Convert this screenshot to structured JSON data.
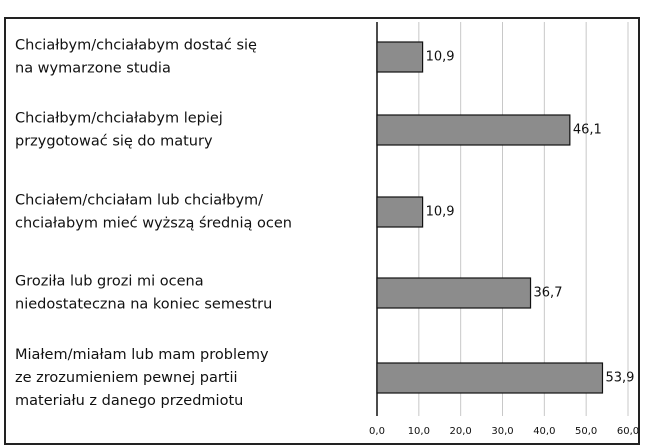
{
  "chart_data": {
    "type": "bar",
    "orientation": "horizontal",
    "categories": [
      [
        "Chciałbym/chciałabym dostać się",
        "na wymarzone studia"
      ],
      [
        "Chciałbym/chciałabym lepiej",
        "przygotować się do matury"
      ],
      [
        "Chciałem/chciałam lub chciałbym/",
        "chciałabym mieć wyższą średnią ocen"
      ],
      [
        "Groziła lub grozi mi ocena",
        "niedostateczna na koniec semestru"
      ],
      [
        "Miałem/miałam lub mam problemy",
        "ze zrozumieniem pewnej partii",
        "materiału z danego przedmiotu"
      ]
    ],
    "values": [
      10.9,
      46.1,
      10.9,
      36.7,
      53.9
    ],
    "value_labels": [
      "10,9",
      "46,1",
      "10,9",
      "36,7",
      "53,9"
    ],
    "color": "#8c8c8c",
    "xlim": [
      0,
      60
    ],
    "xticks": [
      {
        "value": 0,
        "label": "0,0"
      },
      {
        "value": 10,
        "label": "10,0"
      },
      {
        "value": 20,
        "label": "20,0"
      },
      {
        "value": 30,
        "label": "30,0"
      },
      {
        "value": 40,
        "label": "40,0"
      },
      {
        "value": 50,
        "label": "50,0"
      },
      {
        "value": 60,
        "label": "60,0"
      }
    ],
    "grid": true
  }
}
